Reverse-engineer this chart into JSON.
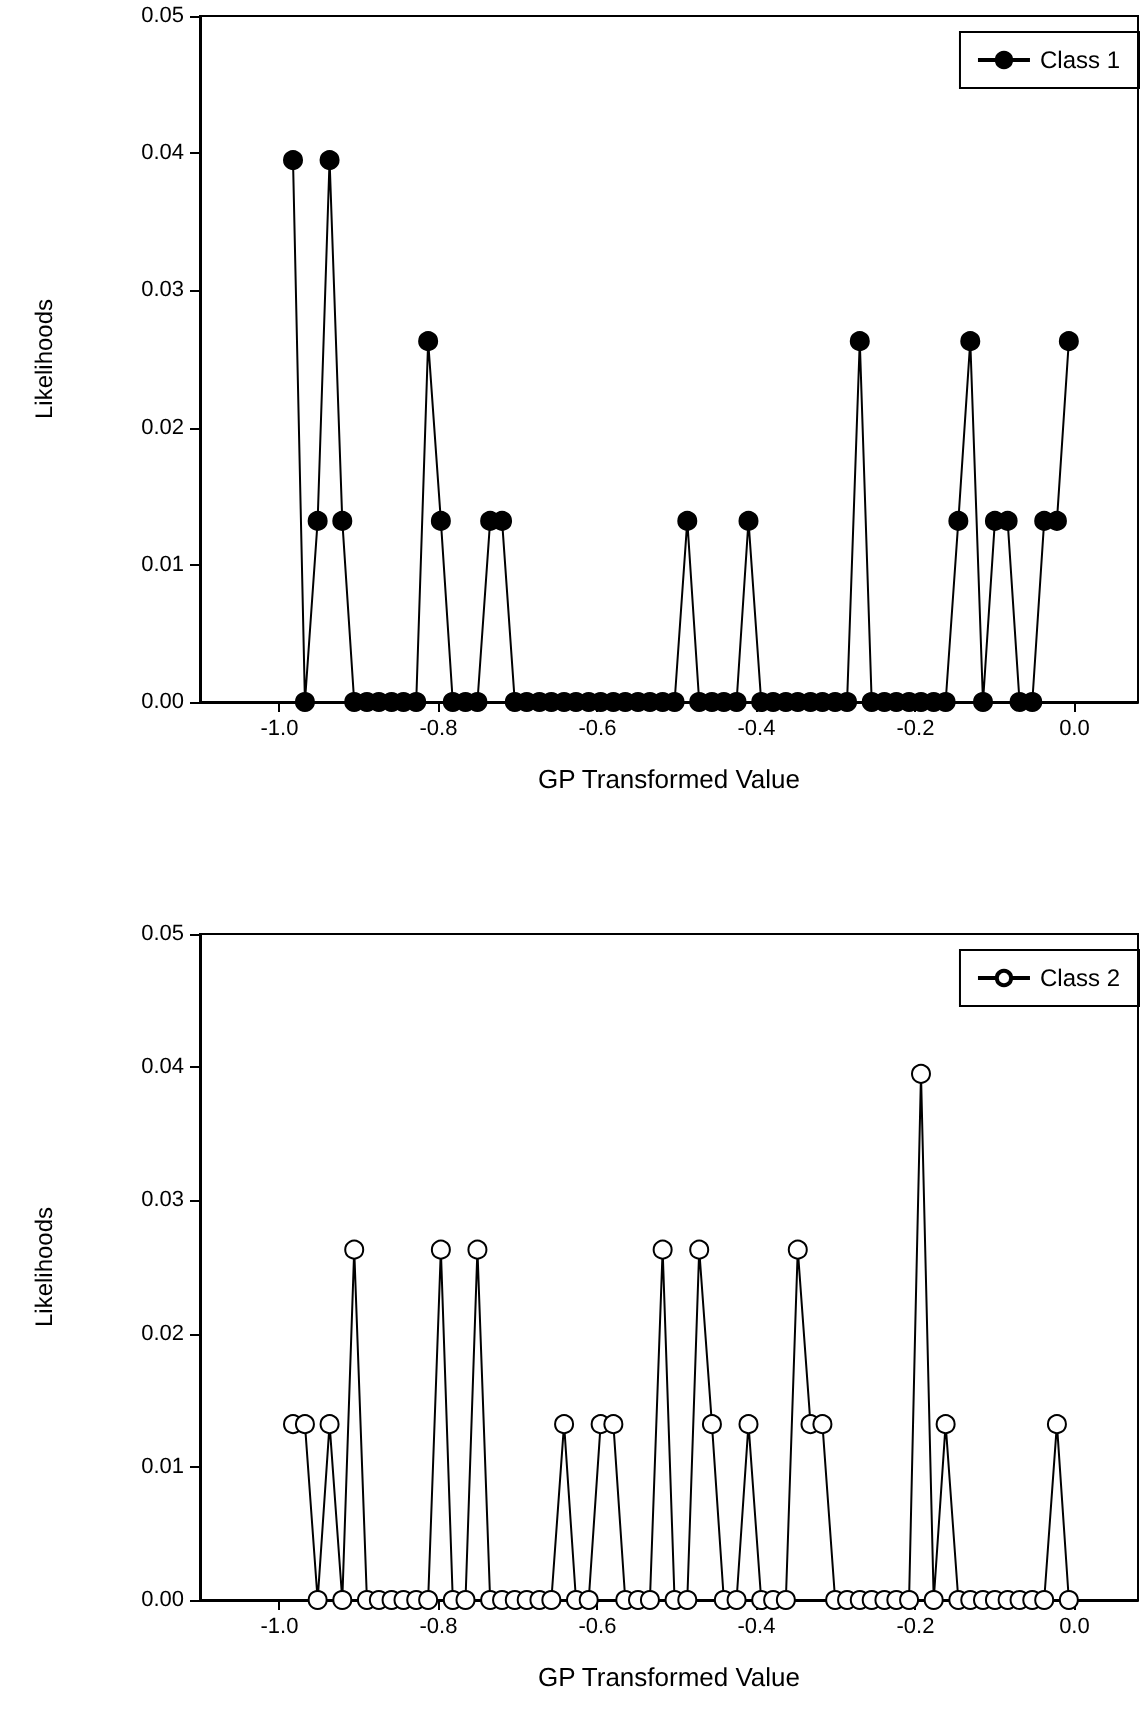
{
  "chart_data": [
    {
      "type": "line",
      "xlabel": "GP Transformed Value",
      "ylabel": "Likelihoods",
      "xlim": [
        -1.1,
        0.08
      ],
      "xticks": [
        {
          "value": -1.0,
          "label": "-1.0"
        },
        {
          "value": -0.8,
          "label": "-0.8"
        },
        {
          "value": -0.6,
          "label": "-0.6"
        },
        {
          "value": -0.4,
          "label": "-0.4"
        },
        {
          "value": -0.2,
          "label": "-0.2"
        },
        {
          "value": 0,
          "label": "0.0"
        }
      ],
      "ylim": [
        0,
        0.05
      ],
      "yticks": [
        {
          "value": 0,
          "label": "0.00"
        },
        {
          "value": 0.01,
          "label": "0.01"
        },
        {
          "value": 0.02,
          "label": "0.02"
        },
        {
          "value": 0.03,
          "label": "0.03"
        },
        {
          "value": 0.04,
          "label": "0.04"
        },
        {
          "value": 0.05,
          "label": "0.05"
        }
      ],
      "grid": false,
      "legend": "top right",
      "marker": "circle",
      "line_style": "solid",
      "x": [
        -0.983,
        -0.968,
        -0.952,
        -0.937,
        -0.921,
        -0.906,
        -0.89,
        -0.875,
        -0.859,
        -0.844,
        -0.828,
        -0.813,
        -0.797,
        -0.782,
        -0.766,
        -0.751,
        -0.735,
        -0.72,
        -0.704,
        -0.689,
        -0.673,
        -0.658,
        -0.642,
        -0.627,
        -0.611,
        -0.596,
        -0.58,
        -0.565,
        -0.549,
        -0.534,
        -0.518,
        -0.503,
        -0.487,
        -0.472,
        -0.456,
        -0.441,
        -0.425,
        -0.41,
        -0.394,
        -0.379,
        -0.363,
        -0.348,
        -0.332,
        -0.317,
        -0.301,
        -0.286,
        -0.27,
        -0.255,
        -0.239,
        -0.224,
        -0.208,
        -0.193,
        -0.177,
        -0.162,
        -0.146,
        -0.131,
        -0.115,
        -0.1,
        -0.084,
        -0.069,
        -0.053,
        -0.038,
        -0.022,
        -0.007
      ],
      "series": [
        {
          "name": "Class 1",
          "color": "#000000",
          "values": [
            0.0395,
            0,
            0.0132,
            0.0395,
            0.0132,
            0,
            0,
            0,
            0,
            0,
            0,
            0.0263,
            0.0132,
            0,
            0,
            0,
            0.0132,
            0.0132,
            0,
            0,
            0,
            0,
            0,
            0,
            0,
            0,
            0,
            0,
            0,
            0,
            0,
            0,
            0.0132,
            0,
            0,
            0,
            0,
            0.0132,
            0,
            0,
            0,
            0,
            0,
            0,
            0,
            0,
            0.0263,
            0,
            0,
            0,
            0,
            0,
            0,
            0,
            0.0132,
            0.0263,
            0,
            0.0132,
            0.0132,
            0,
            0,
            0.0132,
            0.0132,
            0.0263
          ]
        }
      ]
    },
    {
      "type": "line",
      "xlabel": "GP Transformed Value",
      "ylabel": "Likelihoods",
      "xlim": [
        -1.1,
        0.08
      ],
      "xticks": [
        {
          "value": -1.0,
          "label": "-1.0"
        },
        {
          "value": -0.8,
          "label": "-0.8"
        },
        {
          "value": -0.6,
          "label": "-0.6"
        },
        {
          "value": -0.4,
          "label": "-0.4"
        },
        {
          "value": -0.2,
          "label": "-0.2"
        },
        {
          "value": 0,
          "label": "0.0"
        }
      ],
      "ylim": [
        0,
        0.05
      ],
      "yticks": [
        {
          "value": 0,
          "label": "0.00"
        },
        {
          "value": 0.01,
          "label": "0.01"
        },
        {
          "value": 0.02,
          "label": "0.02"
        },
        {
          "value": 0.03,
          "label": "0.03"
        },
        {
          "value": 0.04,
          "label": "0.04"
        },
        {
          "value": 0.05,
          "label": "0.05"
        }
      ],
      "grid": false,
      "legend": "top right",
      "marker": "circle",
      "line_style": "solid",
      "x": [
        -0.983,
        -0.968,
        -0.952,
        -0.937,
        -0.921,
        -0.906,
        -0.89,
        -0.875,
        -0.859,
        -0.844,
        -0.828,
        -0.813,
        -0.797,
        -0.782,
        -0.766,
        -0.751,
        -0.735,
        -0.72,
        -0.704,
        -0.689,
        -0.673,
        -0.658,
        -0.642,
        -0.627,
        -0.611,
        -0.596,
        -0.58,
        -0.565,
        -0.549,
        -0.534,
        -0.518,
        -0.503,
        -0.487,
        -0.472,
        -0.456,
        -0.441,
        -0.425,
        -0.41,
        -0.394,
        -0.379,
        -0.363,
        -0.348,
        -0.332,
        -0.317,
        -0.301,
        -0.286,
        -0.27,
        -0.255,
        -0.239,
        -0.224,
        -0.208,
        -0.193,
        -0.177,
        -0.162,
        -0.146,
        -0.131,
        -0.115,
        -0.1,
        -0.084,
        -0.069,
        -0.053,
        -0.038,
        -0.022,
        -0.007
      ],
      "series": [
        {
          "name": "Class 2",
          "color": "#ffffff",
          "values": [
            0.0132,
            0.0132,
            0,
            0.0132,
            0,
            0.0263,
            0,
            0,
            0,
            0,
            0,
            0,
            0.0263,
            0,
            0,
            0.0263,
            0,
            0,
            0,
            0,
            0,
            0,
            0.0132,
            0,
            0,
            0.0132,
            0.0132,
            0,
            0,
            0,
            0.0263,
            0,
            0,
            0.0263,
            0.0132,
            0,
            0,
            0.0132,
            0,
            0,
            0,
            0.0263,
            0.0132,
            0.0132,
            0,
            0,
            0,
            0,
            0,
            0,
            0,
            0.0395,
            0,
            0.0132,
            0,
            0,
            0,
            0,
            0,
            0,
            0,
            0,
            0.0132,
            0
          ]
        }
      ]
    }
  ]
}
